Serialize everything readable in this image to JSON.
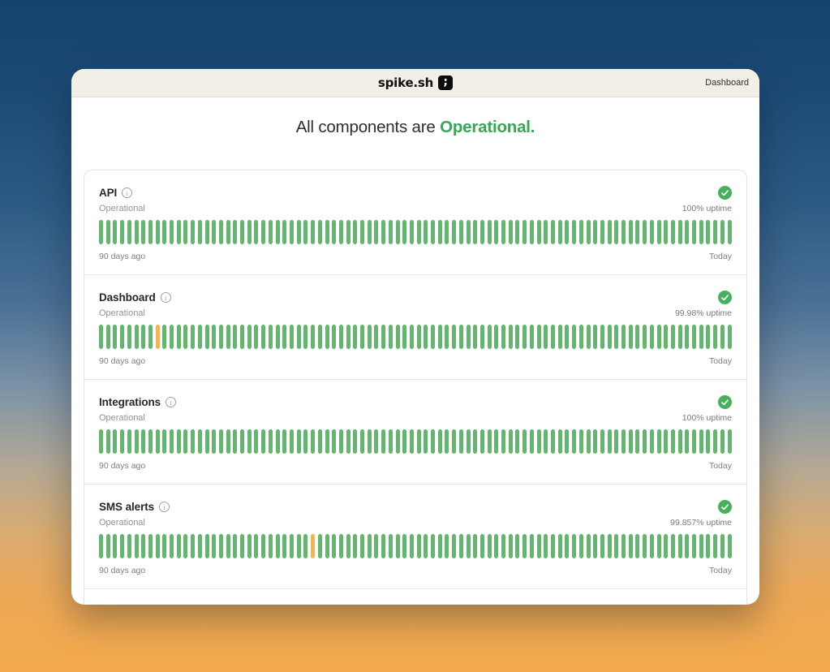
{
  "header": {
    "brand": "spike.sh",
    "nav_link": "Dashboard"
  },
  "heading": {
    "prefix": "All components are ",
    "status": "Operational."
  },
  "icons": {
    "info_glyph": "i",
    "logo_glyph": ";"
  },
  "colors": {
    "status_green": "#34a853",
    "bar_green": "#63b66e",
    "bar_degraded_orange": "#f6b44a",
    "check_green": "#47b05b",
    "header_bg": "#f2efe6"
  },
  "components": [
    {
      "name": "API",
      "status": "Operational",
      "uptime": "100% uptime",
      "bars_total": 90,
      "degraded_bar_indexes": [],
      "start_label": "90 days ago",
      "end_label": "Today"
    },
    {
      "name": "Dashboard",
      "status": "Operational",
      "uptime": "99.98% uptime",
      "bars_total": 90,
      "degraded_bar_indexes": [
        8
      ],
      "start_label": "90 days ago",
      "end_label": "Today"
    },
    {
      "name": "Integrations",
      "status": "Operational",
      "uptime": "100% uptime",
      "bars_total": 90,
      "degraded_bar_indexes": [],
      "start_label": "90 days ago",
      "end_label": "Today"
    },
    {
      "name": "SMS alerts",
      "status": "Operational",
      "uptime": "99.857% uptime",
      "bars_total": 90,
      "degraded_bar_indexes": [
        30
      ],
      "start_label": "90 days ago",
      "end_label": "Today"
    }
  ]
}
